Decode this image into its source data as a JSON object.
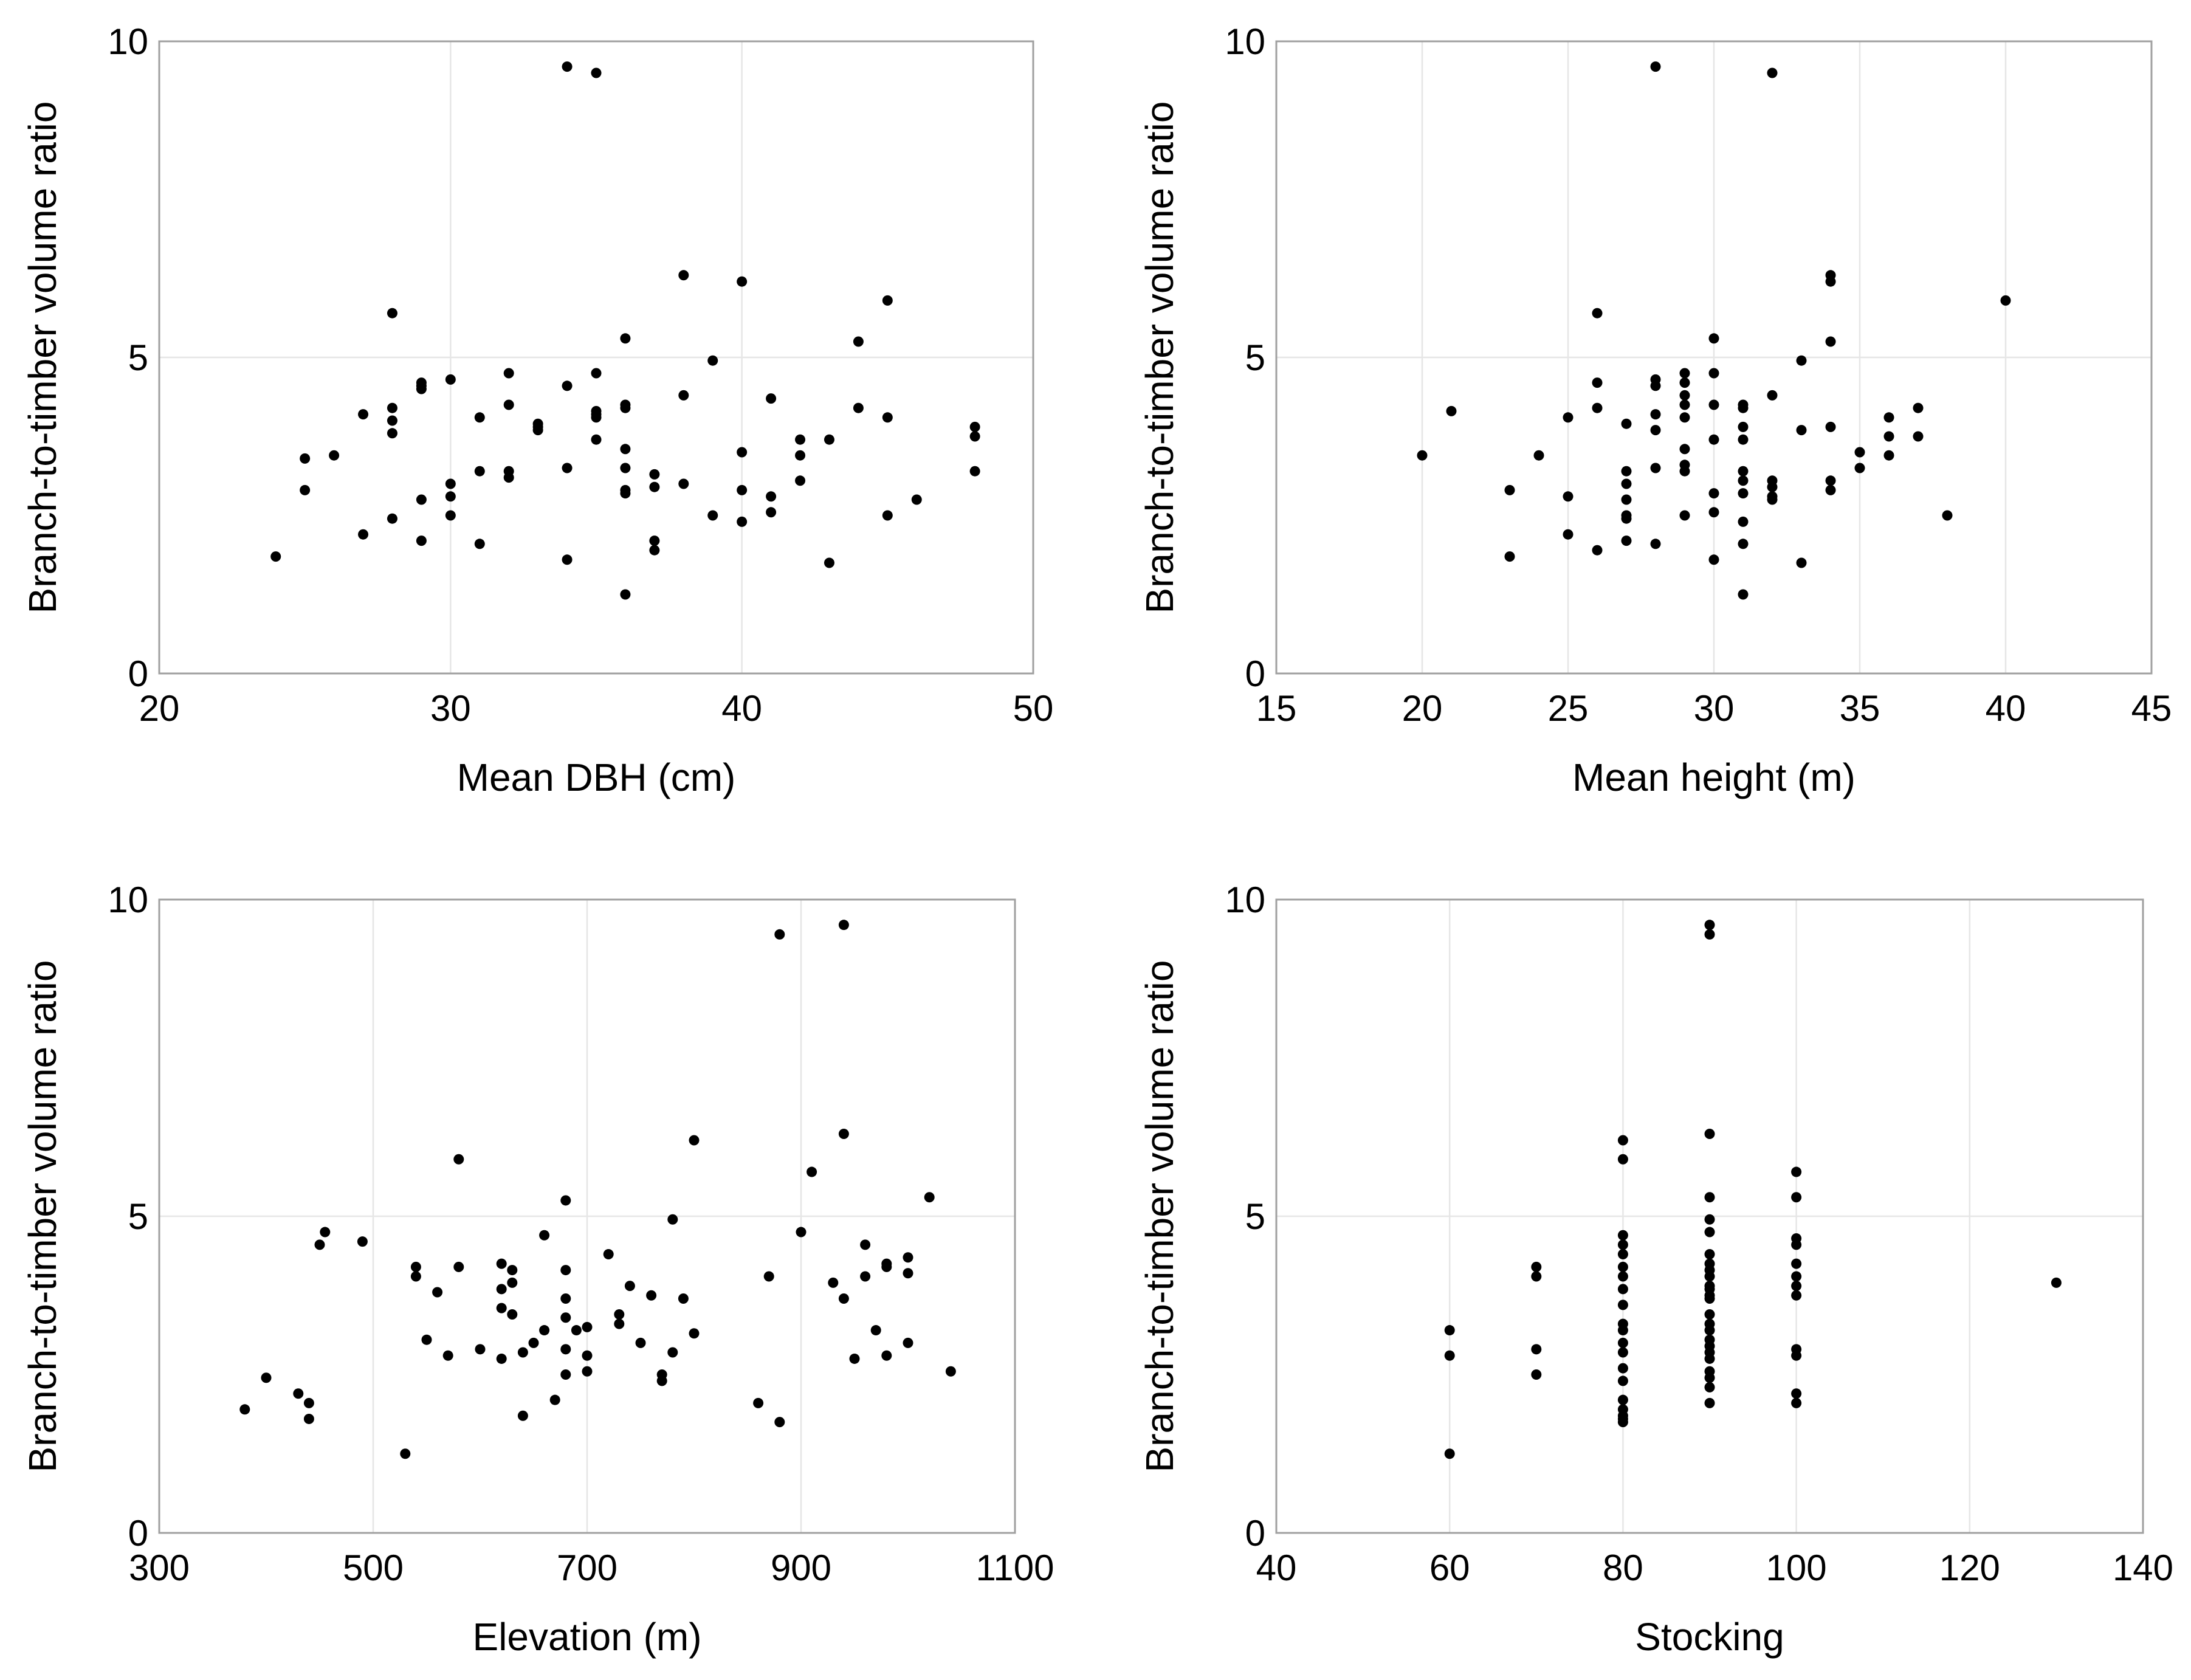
{
  "chart_data": [
    {
      "type": "scatter",
      "xlabel": "Mean DBH (cm)",
      "ylabel": "Branch-to-timber volume ratio",
      "xlim": [
        20,
        50
      ],
      "ylim": [
        0,
        10
      ],
      "xticks": [
        "20",
        "30",
        "40",
        "50"
      ],
      "yticks": [
        "0",
        "5",
        "10"
      ],
      "grid": true,
      "points": [
        [
          24,
          1.85
        ],
        [
          25,
          3.4
        ],
        [
          25,
          2.9
        ],
        [
          26,
          3.45
        ],
        [
          27,
          4.1
        ],
        [
          27,
          2.2
        ],
        [
          28,
          5.7
        ],
        [
          28,
          4.2
        ],
        [
          28,
          4.0
        ],
        [
          28,
          3.8
        ],
        [
          28,
          2.45
        ],
        [
          29,
          4.6
        ],
        [
          29,
          4.55
        ],
        [
          29,
          4.5
        ],
        [
          29,
          2.75
        ],
        [
          29,
          2.1
        ],
        [
          30,
          4.65
        ],
        [
          30,
          3.0
        ],
        [
          30,
          2.8
        ],
        [
          30,
          2.5
        ],
        [
          31,
          4.05
        ],
        [
          31,
          3.2
        ],
        [
          31,
          2.05
        ],
        [
          32,
          4.75
        ],
        [
          32,
          4.25
        ],
        [
          32,
          3.2
        ],
        [
          32,
          3.1
        ],
        [
          33,
          3.95
        ],
        [
          33,
          3.9
        ],
        [
          33,
          3.85
        ],
        [
          34,
          9.6
        ],
        [
          34,
          4.55
        ],
        [
          34,
          3.25
        ],
        [
          34,
          1.8
        ],
        [
          35,
          9.5
        ],
        [
          35,
          4.75
        ],
        [
          35,
          4.15
        ],
        [
          35,
          4.1
        ],
        [
          35,
          4.05
        ],
        [
          35,
          3.7
        ],
        [
          36,
          5.3
        ],
        [
          36,
          4.25
        ],
        [
          36,
          4.2
        ],
        [
          36,
          3.55
        ],
        [
          36,
          3.25
        ],
        [
          36,
          2.9
        ],
        [
          36,
          2.85
        ],
        [
          36,
          1.25
        ],
        [
          37,
          3.15
        ],
        [
          37,
          2.95
        ],
        [
          37,
          2.1
        ],
        [
          37,
          1.95
        ],
        [
          38,
          6.3
        ],
        [
          38,
          4.4
        ],
        [
          38,
          3.0
        ],
        [
          39,
          4.95
        ],
        [
          39,
          2.5
        ],
        [
          40,
          6.2
        ],
        [
          40,
          3.5
        ],
        [
          40,
          2.9
        ],
        [
          40,
          2.4
        ],
        [
          41,
          4.35
        ],
        [
          41,
          2.8
        ],
        [
          41,
          2.55
        ],
        [
          42,
          3.7
        ],
        [
          42,
          3.45
        ],
        [
          42,
          3.05
        ],
        [
          43,
          3.7
        ],
        [
          43,
          1.75
        ],
        [
          44,
          5.25
        ],
        [
          44,
          4.2
        ],
        [
          45,
          5.9
        ],
        [
          45,
          4.05
        ],
        [
          45,
          2.5
        ],
        [
          46,
          2.75
        ],
        [
          48,
          3.9
        ],
        [
          48,
          3.75
        ],
        [
          48,
          3.2
        ]
      ]
    },
    {
      "type": "scatter",
      "xlabel": "Mean height (m)",
      "ylabel": "Branch-to-timber volume ratio",
      "xlim": [
        15,
        45
      ],
      "ylim": [
        0,
        10
      ],
      "xticks": [
        "15",
        "20",
        "25",
        "30",
        "35",
        "40",
        "45"
      ],
      "yticks": [
        "0",
        "5",
        "10"
      ],
      "grid": true,
      "points": [
        [
          20,
          3.45
        ],
        [
          21,
          4.15
        ],
        [
          23,
          2.9
        ],
        [
          23,
          1.85
        ],
        [
          24,
          3.45
        ],
        [
          25,
          4.05
        ],
        [
          25,
          2.8
        ],
        [
          25,
          2.2
        ],
        [
          26,
          5.7
        ],
        [
          26,
          4.6
        ],
        [
          26,
          4.2
        ],
        [
          26,
          1.95
        ],
        [
          27,
          3.95
        ],
        [
          27,
          3.2
        ],
        [
          27,
          3.0
        ],
        [
          27,
          2.75
        ],
        [
          27,
          2.5
        ],
        [
          27,
          2.45
        ],
        [
          27,
          2.1
        ],
        [
          28,
          9.6
        ],
        [
          28,
          4.65
        ],
        [
          28,
          4.55
        ],
        [
          28,
          4.1
        ],
        [
          28,
          3.85
        ],
        [
          28,
          3.25
        ],
        [
          28,
          2.05
        ],
        [
          29,
          4.75
        ],
        [
          29,
          4.6
        ],
        [
          29,
          4.4
        ],
        [
          29,
          4.25
        ],
        [
          29,
          4.05
        ],
        [
          29,
          3.55
        ],
        [
          29,
          3.3
        ],
        [
          29,
          3.2
        ],
        [
          29,
          2.5
        ],
        [
          30,
          5.3
        ],
        [
          30,
          4.75
        ],
        [
          30,
          4.25
        ],
        [
          30,
          3.7
        ],
        [
          30,
          2.85
        ],
        [
          30,
          2.55
        ],
        [
          30,
          1.8
        ],
        [
          31,
          4.25
        ],
        [
          31,
          4.2
        ],
        [
          31,
          3.9
        ],
        [
          31,
          3.7
        ],
        [
          31,
          3.2
        ],
        [
          31,
          3.05
        ],
        [
          31,
          2.85
        ],
        [
          31,
          2.4
        ],
        [
          31,
          2.05
        ],
        [
          31,
          1.25
        ],
        [
          32,
          9.5
        ],
        [
          32,
          4.4
        ],
        [
          32,
          3.05
        ],
        [
          32,
          2.95
        ],
        [
          32,
          2.8
        ],
        [
          32,
          2.75
        ],
        [
          33,
          4.95
        ],
        [
          33,
          3.85
        ],
        [
          33,
          1.75
        ],
        [
          34,
          6.3
        ],
        [
          34,
          6.2
        ],
        [
          34,
          5.25
        ],
        [
          34,
          3.9
        ],
        [
          34,
          3.05
        ],
        [
          34,
          2.9
        ],
        [
          35,
          3.5
        ],
        [
          35,
          3.25
        ],
        [
          36,
          4.05
        ],
        [
          36,
          3.75
        ],
        [
          36,
          3.45
        ],
        [
          37,
          4.2
        ],
        [
          37,
          3.75
        ],
        [
          38,
          2.5
        ],
        [
          40,
          5.9
        ]
      ]
    },
    {
      "type": "scatter",
      "xlabel": "Elevation (m)",
      "ylabel": "Branch-to-timber volume ratio",
      "xlim": [
        300,
        1100
      ],
      "ylim": [
        0,
        10
      ],
      "xticks": [
        "300",
        "500",
        "700",
        "900",
        "1100"
      ],
      "yticks": [
        "0",
        "5",
        "10"
      ],
      "grid": true,
      "points": [
        [
          380,
          1.95
        ],
        [
          400,
          2.45
        ],
        [
          430,
          2.2
        ],
        [
          440,
          2.05
        ],
        [
          440,
          1.8
        ],
        [
          450,
          4.55
        ],
        [
          455,
          4.75
        ],
        [
          490,
          4.6
        ],
        [
          530,
          1.25
        ],
        [
          540,
          4.2
        ],
        [
          540,
          4.05
        ],
        [
          550,
          3.05
        ],
        [
          560,
          3.8
        ],
        [
          570,
          2.8
        ],
        [
          580,
          5.9
        ],
        [
          580,
          4.2
        ],
        [
          600,
          2.9
        ],
        [
          620,
          4.25
        ],
        [
          620,
          3.85
        ],
        [
          620,
          3.55
        ],
        [
          620,
          2.75
        ],
        [
          630,
          4.15
        ],
        [
          630,
          3.95
        ],
        [
          630,
          3.45
        ],
        [
          640,
          2.85
        ],
        [
          640,
          1.85
        ],
        [
          650,
          3.0
        ],
        [
          660,
          4.7
        ],
        [
          660,
          3.2
        ],
        [
          670,
          2.1
        ],
        [
          680,
          5.25
        ],
        [
          680,
          4.15
        ],
        [
          680,
          3.7
        ],
        [
          680,
          3.4
        ],
        [
          680,
          2.9
        ],
        [
          680,
          2.5
        ],
        [
          690,
          3.2
        ],
        [
          700,
          3.25
        ],
        [
          700,
          2.8
        ],
        [
          700,
          2.55
        ],
        [
          720,
          4.4
        ],
        [
          730,
          3.45
        ],
        [
          730,
          3.3
        ],
        [
          740,
          3.9
        ],
        [
          750,
          3.0
        ],
        [
          760,
          3.75
        ],
        [
          770,
          2.5
        ],
        [
          770,
          2.4
        ],
        [
          780,
          4.95
        ],
        [
          780,
          2.85
        ],
        [
          790,
          3.7
        ],
        [
          800,
          6.2
        ],
        [
          800,
          3.15
        ],
        [
          860,
          2.05
        ],
        [
          870,
          4.05
        ],
        [
          880,
          9.45
        ],
        [
          880,
          1.75
        ],
        [
          900,
          4.75
        ],
        [
          910,
          5.7
        ],
        [
          930,
          3.95
        ],
        [
          940,
          9.6
        ],
        [
          940,
          6.3
        ],
        [
          940,
          3.7
        ],
        [
          950,
          2.75
        ],
        [
          960,
          4.55
        ],
        [
          960,
          4.05
        ],
        [
          970,
          3.2
        ],
        [
          980,
          4.25
        ],
        [
          980,
          4.2
        ],
        [
          980,
          2.8
        ],
        [
          1000,
          4.35
        ],
        [
          1000,
          4.1
        ],
        [
          1000,
          3.0
        ],
        [
          1020,
          5.3
        ],
        [
          1040,
          2.55
        ]
      ]
    },
    {
      "type": "scatter",
      "xlabel": "Stocking",
      "ylabel": "Branch-to-timber volume ratio",
      "xlim": [
        40,
        140
      ],
      "ylim": [
        0,
        10
      ],
      "xticks": [
        "40",
        "60",
        "80",
        "100",
        "120",
        "140"
      ],
      "yticks": [
        "0",
        "5",
        "10"
      ],
      "grid": true,
      "points": [
        [
          60,
          3.2
        ],
        [
          60,
          2.8
        ],
        [
          60,
          1.25
        ],
        [
          70,
          4.2
        ],
        [
          70,
          4.05
        ],
        [
          70,
          2.9
        ],
        [
          70,
          2.5
        ],
        [
          80,
          6.2
        ],
        [
          80,
          5.9
        ],
        [
          80,
          4.7
        ],
        [
          80,
          4.55
        ],
        [
          80,
          4.4
        ],
        [
          80,
          4.2
        ],
        [
          80,
          4.05
        ],
        [
          80,
          3.85
        ],
        [
          80,
          3.6
        ],
        [
          80,
          3.3
        ],
        [
          80,
          3.2
        ],
        [
          80,
          3.0
        ],
        [
          80,
          2.85
        ],
        [
          80,
          2.6
        ],
        [
          80,
          2.4
        ],
        [
          80,
          2.1
        ],
        [
          80,
          1.95
        ],
        [
          80,
          1.85
        ],
        [
          80,
          1.8
        ],
        [
          80,
          1.75
        ],
        [
          90,
          9.6
        ],
        [
          90,
          9.45
        ],
        [
          90,
          6.3
        ],
        [
          90,
          5.3
        ],
        [
          90,
          4.95
        ],
        [
          90,
          4.75
        ],
        [
          90,
          4.4
        ],
        [
          90,
          4.25
        ],
        [
          90,
          4.15
        ],
        [
          90,
          4.05
        ],
        [
          90,
          3.9
        ],
        [
          90,
          3.85
        ],
        [
          90,
          3.75
        ],
        [
          90,
          3.7
        ],
        [
          90,
          3.45
        ],
        [
          90,
          3.3
        ],
        [
          90,
          3.2
        ],
        [
          90,
          3.05
        ],
        [
          90,
          2.95
        ],
        [
          90,
          2.85
        ],
        [
          90,
          2.75
        ],
        [
          90,
          2.55
        ],
        [
          90,
          2.45
        ],
        [
          90,
          2.3
        ],
        [
          90,
          2.05
        ],
        [
          100,
          5.7
        ],
        [
          100,
          5.3
        ],
        [
          100,
          4.65
        ],
        [
          100,
          4.55
        ],
        [
          100,
          4.25
        ],
        [
          100,
          4.05
        ],
        [
          100,
          3.9
        ],
        [
          100,
          3.75
        ],
        [
          100,
          2.9
        ],
        [
          100,
          2.8
        ],
        [
          100,
          2.2
        ],
        [
          100,
          2.05
        ],
        [
          130,
          3.95
        ]
      ]
    }
  ]
}
